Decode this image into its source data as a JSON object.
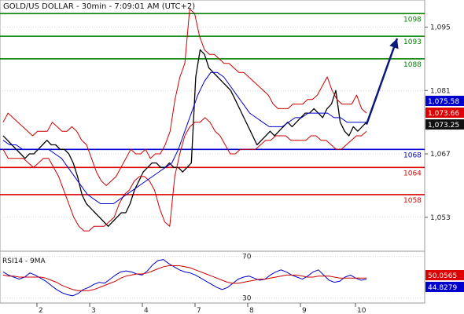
{
  "chart_data": [
    {
      "type": "line",
      "title": "GOLD/US DOLLAR - 30min - 7:09:01 AM (UTC+2)",
      "x_ticks": [
        "2",
        "3",
        "4",
        "7",
        "8",
        "9",
        "10"
      ],
      "y_ticks": [
        "1,095",
        "1,081",
        "1,067",
        "1,053"
      ],
      "ylim": [
        1045.5,
        1101
      ],
      "levels": [
        {
          "value": 1098,
          "label": "1098",
          "color": "#008000"
        },
        {
          "value": 1093,
          "label": "1093",
          "color": "#008000"
        },
        {
          "value": 1088,
          "label": "1088",
          "color": "#008000"
        },
        {
          "value": 1068,
          "label": "1068",
          "color": "#0000cc"
        },
        {
          "value": 1064,
          "label": "1064",
          "color": "#dd0000"
        },
        {
          "value": 1058,
          "label": "1058",
          "color": "#dd0000"
        }
      ],
      "value_tags": [
        {
          "label": "1,075.58",
          "value": 1075.58,
          "color": "#0000cc"
        },
        {
          "label": "1,073.66",
          "value": 1073.66,
          "color": "#dd0000"
        },
        {
          "label": "1,073.25",
          "value": 1073.25,
          "color": "#111111"
        }
      ],
      "series": [
        {
          "name": "price",
          "color": "#000000",
          "values": [
            1071,
            1070,
            1069,
            1068,
            1067,
            1066,
            1067,
            1067,
            1068,
            1069,
            1070,
            1069,
            1069,
            1068,
            1068,
            1067,
            1065,
            1062,
            1058,
            1056,
            1055,
            1054,
            1053,
            1052,
            1051,
            1052,
            1053,
            1054,
            1054,
            1056,
            1059,
            1061,
            1063,
            1064,
            1065,
            1065,
            1064,
            1064,
            1065,
            1064,
            1064,
            1063,
            1064,
            1065,
            1084,
            1090,
            1089,
            1086,
            1085,
            1084,
            1083,
            1082,
            1081,
            1079,
            1077,
            1075,
            1073,
            1071,
            1069,
            1070,
            1071,
            1072,
            1071,
            1072,
            1073,
            1074,
            1073,
            1074,
            1075,
            1076,
            1076,
            1077,
            1076,
            1075,
            1077,
            1078,
            1081,
            1074,
            1072,
            1071,
            1073,
            1072,
            1073,
            1074
          ]
        },
        {
          "name": "bollinger-upper",
          "color": "#cc0000",
          "values": [
            1074,
            1076,
            1075,
            1074,
            1073,
            1072,
            1071,
            1072,
            1072,
            1072,
            1074,
            1073,
            1072,
            1072,
            1073,
            1072,
            1070,
            1069,
            1066,
            1063,
            1061,
            1060,
            1061,
            1062,
            1064,
            1066,
            1068,
            1067,
            1067,
            1068,
            1066,
            1067,
            1067,
            1069,
            1072,
            1079,
            1084,
            1087,
            1099,
            1098,
            1093,
            1090,
            1089,
            1089,
            1088,
            1087,
            1087,
            1086,
            1085,
            1085,
            1084,
            1083,
            1082,
            1081,
            1080,
            1078,
            1077,
            1077,
            1077,
            1078,
            1078,
            1078,
            1079,
            1079,
            1080,
            1082,
            1084,
            1081,
            1079,
            1078,
            1078,
            1078,
            1080,
            1077,
            1076
          ]
        },
        {
          "name": "bollinger-lower",
          "color": "#cc0000",
          "values": [
            1068,
            1066,
            1066,
            1066,
            1066,
            1065,
            1064,
            1065,
            1066,
            1066,
            1064,
            1062,
            1059,
            1056,
            1053,
            1051,
            1050,
            1050,
            1051,
            1051,
            1051,
            1052,
            1053,
            1056,
            1058,
            1059,
            1061,
            1062,
            1062,
            1061,
            1059,
            1055,
            1052,
            1051,
            1062,
            1067,
            1071,
            1073,
            1074,
            1074,
            1075,
            1074,
            1072,
            1071,
            1069,
            1067,
            1067,
            1068,
            1068,
            1068,
            1068,
            1069,
            1070,
            1070,
            1071,
            1071,
            1071,
            1070,
            1070,
            1070,
            1070,
            1071,
            1071,
            1070,
            1070,
            1069,
            1068,
            1068,
            1069,
            1070,
            1071,
            1071,
            1072
          ]
        },
        {
          "name": "moving-average",
          "color": "#0000cc",
          "values": [
            1070,
            1069,
            1069,
            1068,
            1068,
            1068,
            1068,
            1068,
            1067,
            1066,
            1064,
            1062,
            1060,
            1058,
            1057,
            1056,
            1056,
            1056,
            1057,
            1058,
            1059,
            1060,
            1061,
            1062,
            1063,
            1064,
            1065,
            1068,
            1072,
            1076,
            1080,
            1083,
            1085,
            1085,
            1084,
            1082,
            1080,
            1078,
            1076,
            1075,
            1074,
            1073,
            1073,
            1073,
            1074,
            1075,
            1075,
            1076,
            1076,
            1076,
            1076,
            1075,
            1075,
            1074,
            1074,
            1074,
            1074
          ]
        }
      ],
      "annotations": [
        {
          "type": "arrow",
          "color": "#0a1a7a",
          "from": {
            "x_index": 83,
            "y": 1073.5
          },
          "to": {
            "x_index": 90,
            "y": 1092.5
          }
        }
      ]
    },
    {
      "type": "line",
      "title": "RSI14 - 9MA",
      "ylim": [
        25,
        75
      ],
      "y_ticks": [
        "70",
        "30"
      ],
      "value_tags": [
        {
          "label": "50.0565",
          "value": 50.0565,
          "color": "#dd0000"
        },
        {
          "label": "44.8279",
          "value": 44.8279,
          "color": "#0000cc"
        }
      ],
      "series": [
        {
          "name": "RSI14",
          "color": "#0000cc",
          "values": [
            55,
            52,
            50,
            48,
            50,
            54,
            52,
            49,
            46,
            42,
            38,
            35,
            33,
            32,
            34,
            38,
            40,
            43,
            45,
            44,
            48,
            52,
            55,
            56,
            55,
            53,
            52,
            56,
            62,
            66,
            67,
            63,
            60,
            57,
            55,
            54,
            52,
            49,
            46,
            43,
            40,
            38,
            40,
            44,
            48,
            50,
            51,
            49,
            47,
            48,
            52,
            55,
            57,
            55,
            52,
            50,
            48,
            51,
            55,
            57,
            52,
            47,
            45,
            46,
            50,
            52,
            49,
            47,
            48
          ]
        },
        {
          "name": "9MA",
          "color": "#cc0000",
          "values": [
            52,
            51,
            51,
            50,
            50,
            50,
            50,
            50,
            49,
            47,
            45,
            42,
            40,
            38,
            37,
            37,
            37,
            38,
            40,
            42,
            44,
            46,
            49,
            51,
            52,
            53,
            53,
            54,
            56,
            58,
            60,
            61,
            61,
            61,
            60,
            59,
            57,
            55,
            53,
            51,
            49,
            47,
            45,
            44,
            44,
            45,
            46,
            47,
            48,
            48,
            49,
            50,
            51,
            52,
            52,
            52,
            51,
            50,
            50,
            51,
            51,
            51,
            50,
            49,
            49,
            49,
            49,
            49,
            49
          ]
        }
      ]
    }
  ]
}
